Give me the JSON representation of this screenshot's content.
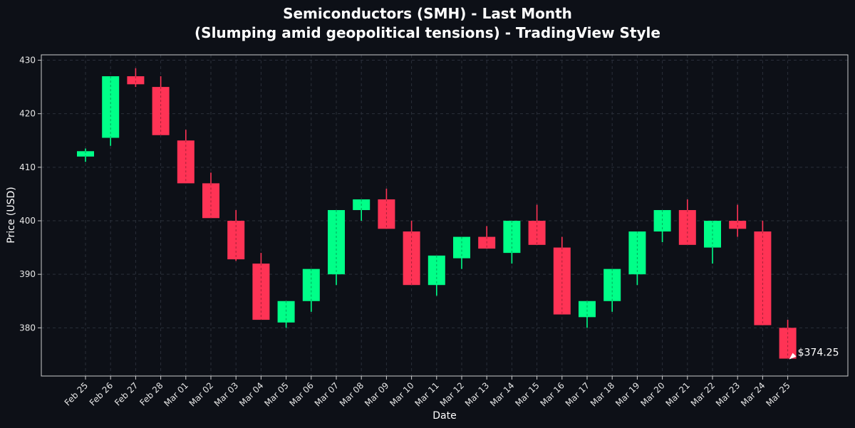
{
  "chart_data": {
    "type": "candlestick",
    "title_line1": "Semiconductors (SMH) - Last Month",
    "title_line2": "(Slumping amid geopolitical tensions) - TradingView Style",
    "xlabel": "Date",
    "ylabel": "Price (USD)",
    "ylim": [
      371,
      431
    ],
    "yticks": [
      380,
      390,
      400,
      410,
      420,
      430
    ],
    "grid": true,
    "colors": {
      "up": "#00ff88",
      "down": "#ff3355",
      "background": "#0d1017",
      "grid": "#2a2f3a",
      "frame": "#cccccc",
      "text": "#ffffff"
    },
    "annotation": {
      "text": "$374.25",
      "value": 374.25,
      "category": "Mar 25"
    },
    "candles": [
      {
        "date": "Feb 25",
        "open": 412.0,
        "high": 413.5,
        "low": 411.0,
        "close": 413.0
      },
      {
        "date": "Feb 26",
        "open": 415.5,
        "high": 427.0,
        "low": 414.0,
        "close": 427.0
      },
      {
        "date": "Feb 27",
        "open": 427.0,
        "high": 428.5,
        "low": 425.0,
        "close": 425.5
      },
      {
        "date": "Feb 28",
        "open": 425.0,
        "high": 427.0,
        "low": 416.0,
        "close": 416.0
      },
      {
        "date": "Mar 01",
        "open": 415.0,
        "high": 417.0,
        "low": 407.0,
        "close": 407.0
      },
      {
        "date": "Mar 02",
        "open": 407.0,
        "high": 409.0,
        "low": 400.5,
        "close": 400.5
      },
      {
        "date": "Mar 03",
        "open": 400.0,
        "high": 402.0,
        "low": 392.5,
        "close": 392.8
      },
      {
        "date": "Mar 04",
        "open": 392.0,
        "high": 394.0,
        "low": 381.5,
        "close": 381.5
      },
      {
        "date": "Mar 05",
        "open": 381.0,
        "high": 385.0,
        "low": 380.0,
        "close": 385.0
      },
      {
        "date": "Mar 06",
        "open": 385.0,
        "high": 391.0,
        "low": 383.0,
        "close": 391.0
      },
      {
        "date": "Mar 07",
        "open": 390.0,
        "high": 402.0,
        "low": 388.0,
        "close": 402.0
      },
      {
        "date": "Mar 08",
        "open": 402.0,
        "high": 404.0,
        "low": 400.0,
        "close": 404.0
      },
      {
        "date": "Mar 09",
        "open": 404.0,
        "high": 406.0,
        "low": 398.5,
        "close": 398.5
      },
      {
        "date": "Mar 10",
        "open": 398.0,
        "high": 400.0,
        "low": 388.0,
        "close": 388.0
      },
      {
        "date": "Mar 11",
        "open": 388.0,
        "high": 393.5,
        "low": 386.0,
        "close": 393.5
      },
      {
        "date": "Mar 12",
        "open": 393.0,
        "high": 397.0,
        "low": 391.0,
        "close": 397.0
      },
      {
        "date": "Mar 13",
        "open": 397.0,
        "high": 399.0,
        "low": 394.8,
        "close": 394.8
      },
      {
        "date": "Mar 14",
        "open": 394.0,
        "high": 400.0,
        "low": 392.0,
        "close": 400.0
      },
      {
        "date": "Mar 15",
        "open": 400.0,
        "high": 403.0,
        "low": 395.5,
        "close": 395.5
      },
      {
        "date": "Mar 16",
        "open": 395.0,
        "high": 397.0,
        "low": 382.5,
        "close": 382.5
      },
      {
        "date": "Mar 17",
        "open": 382.0,
        "high": 385.0,
        "low": 380.0,
        "close": 385.0
      },
      {
        "date": "Mar 18",
        "open": 385.0,
        "high": 391.0,
        "low": 383.0,
        "close": 391.0
      },
      {
        "date": "Mar 19",
        "open": 390.0,
        "high": 398.0,
        "low": 388.0,
        "close": 398.0
      },
      {
        "date": "Mar 20",
        "open": 398.0,
        "high": 402.0,
        "low": 396.0,
        "close": 402.0
      },
      {
        "date": "Mar 21",
        "open": 402.0,
        "high": 404.0,
        "low": 395.5,
        "close": 395.5
      },
      {
        "date": "Mar 22",
        "open": 395.0,
        "high": 400.0,
        "low": 392.0,
        "close": 400.0
      },
      {
        "date": "Mar 23",
        "open": 400.0,
        "high": 403.0,
        "low": 397.0,
        "close": 398.5
      },
      {
        "date": "Mar 24",
        "open": 398.0,
        "high": 400.0,
        "low": 380.5,
        "close": 380.5
      },
      {
        "date": "Mar 25",
        "open": 380.0,
        "high": 381.5,
        "low": 374.25,
        "close": 374.25
      }
    ]
  }
}
